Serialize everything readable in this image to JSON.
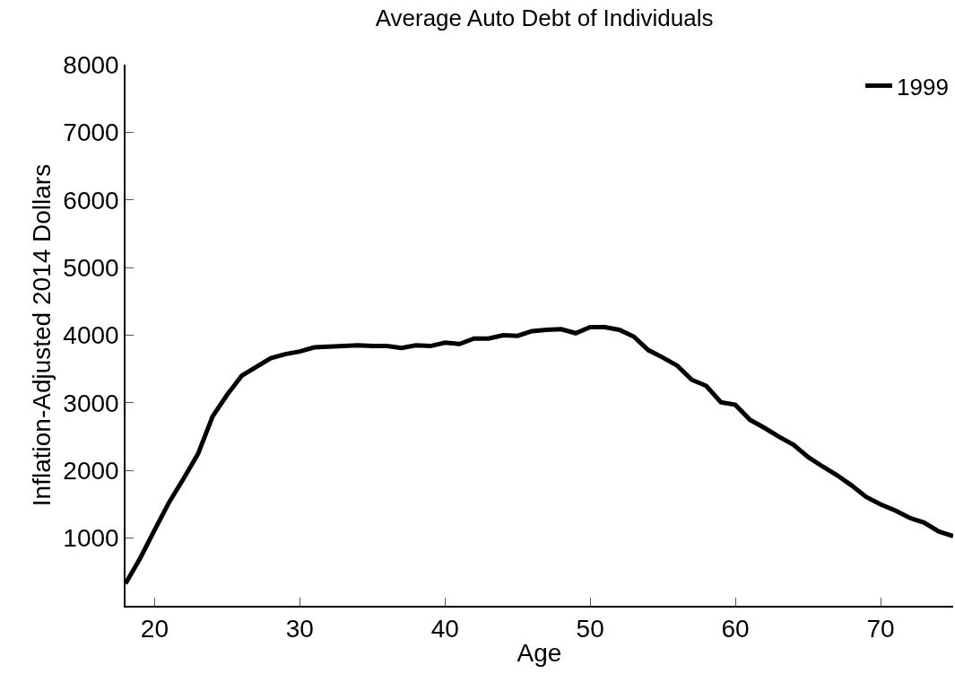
{
  "chart_data": {
    "type": "line",
    "title": "Average Auto Debt of Individuals",
    "xlabel": "Age",
    "ylabel": "Inflation-Adjusted 2014 Dollars",
    "x": [
      18,
      19,
      20,
      21,
      22,
      23,
      24,
      25,
      26,
      27,
      28,
      29,
      30,
      31,
      32,
      33,
      34,
      35,
      36,
      37,
      38,
      39,
      40,
      41,
      42,
      43,
      44,
      45,
      46,
      47,
      48,
      49,
      50,
      51,
      52,
      53,
      54,
      55,
      56,
      57,
      58,
      59,
      60,
      61,
      62,
      63,
      64,
      65,
      66,
      67,
      68,
      69,
      70,
      71,
      72,
      73,
      74,
      75
    ],
    "series": [
      {
        "name": "1999",
        "color": "#000000",
        "values": [
          330,
          700,
          1120,
          1530,
          1880,
          2250,
          2800,
          3120,
          3400,
          3530,
          3660,
          3720,
          3760,
          3820,
          3830,
          3840,
          3850,
          3840,
          3840,
          3810,
          3850,
          3840,
          3890,
          3870,
          3950,
          3950,
          4000,
          3990,
          4060,
          4080,
          4090,
          4030,
          4120,
          4120,
          4080,
          3980,
          3780,
          3670,
          3550,
          3340,
          3250,
          3010,
          2970,
          2750,
          2630,
          2500,
          2380,
          2200,
          2060,
          1930,
          1780,
          1610,
          1500,
          1410,
          1300,
          1230,
          1100,
          1030
        ]
      }
    ],
    "xlim": [
      18,
      75
    ],
    "xticks": [
      20,
      30,
      40,
      50,
      60,
      70
    ],
    "ylim": [
      0,
      8000
    ],
    "yticks": [
      1000,
      2000,
      3000,
      4000,
      5000,
      6000,
      7000,
      8000
    ],
    "legend": "top right",
    "line_style": "solid",
    "marker": "none"
  }
}
